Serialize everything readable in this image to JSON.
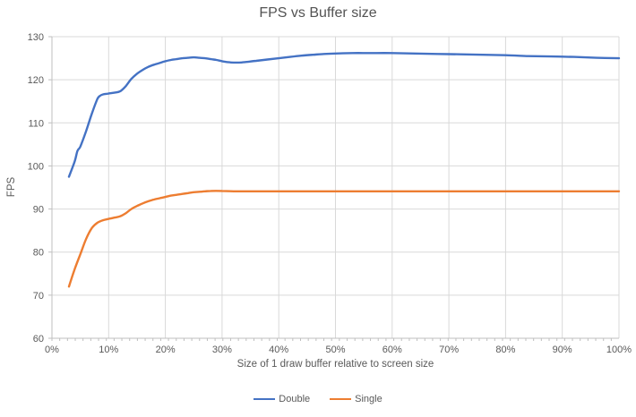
{
  "chart_data": {
    "type": "line",
    "title": "FPS vs Buffer size",
    "xlabel": "Size of 1 draw buffer relative to screen size",
    "ylabel": "FPS",
    "xlim": [
      0,
      100
    ],
    "ylim": [
      60,
      130
    ],
    "x_ticks": [
      0,
      10,
      20,
      30,
      40,
      50,
      60,
      70,
      80,
      90,
      100
    ],
    "x_tick_labels": [
      "0%",
      "10%",
      "20%",
      "30%",
      "40%",
      "50%",
      "60%",
      "70%",
      "80%",
      "90%",
      "100%"
    ],
    "y_ticks": [
      60,
      70,
      80,
      90,
      100,
      110,
      120,
      130
    ],
    "y_tick_labels": [
      "60",
      "70",
      "80",
      "90",
      "100",
      "110",
      "120",
      "130"
    ],
    "x_minor_tick_step": 1.37,
    "grid": true,
    "legend_position": "bottom",
    "colors": {
      "grid": "#d9d9d9",
      "axis": "#bfbfbf",
      "tick_text": "#595959",
      "title_text": "#535353"
    },
    "series": [
      {
        "name": "Double",
        "color": "#4472c4",
        "x": [
          3,
          4,
          4.5,
          5,
          6,
          7,
          8,
          8.5,
          9,
          10,
          11,
          12,
          13,
          14,
          15,
          16,
          17,
          18,
          19,
          20,
          21,
          22,
          23,
          24,
          25,
          26,
          27,
          28,
          29,
          30,
          31,
          32,
          33,
          34,
          36,
          38,
          40,
          42,
          44,
          46,
          48,
          50,
          53,
          56,
          60,
          64,
          68,
          72,
          76,
          80,
          84,
          88,
          92,
          96,
          100
        ],
        "y": [
          97.5,
          101,
          103.5,
          104.5,
          108,
          112,
          115.5,
          116.3,
          116.6,
          116.8,
          117,
          117.3,
          118.5,
          120.2,
          121.4,
          122.3,
          123,
          123.5,
          123.9,
          124.3,
          124.6,
          124.8,
          125,
          125.1,
          125.2,
          125.1,
          125,
          124.8,
          124.6,
          124.3,
          124.1,
          124,
          124,
          124.1,
          124.4,
          124.7,
          125,
          125.3,
          125.6,
          125.8,
          126,
          126.1,
          126.2,
          126.2,
          126.2,
          126.1,
          126,
          125.9,
          125.8,
          125.7,
          125.5,
          125.4,
          125.3,
          125.1,
          125
        ]
      },
      {
        "name": "Single",
        "color": "#ed7d31",
        "x": [
          3,
          4,
          5,
          6,
          7,
          8,
          9,
          10,
          11,
          12,
          13,
          14,
          15,
          16,
          17,
          18,
          19,
          20,
          21,
          22,
          23,
          24,
          25,
          26,
          27,
          28,
          30,
          32,
          35,
          40,
          45,
          50,
          60,
          70,
          80,
          90,
          100
        ],
        "y": [
          72,
          76,
          79.5,
          83,
          85.5,
          86.8,
          87.4,
          87.7,
          88,
          88.3,
          89,
          90,
          90.7,
          91.3,
          91.8,
          92.2,
          92.5,
          92.8,
          93.1,
          93.3,
          93.5,
          93.7,
          93.9,
          94,
          94.1,
          94.2,
          94.2,
          94.1,
          94.1,
          94.1,
          94.1,
          94.1,
          94.1,
          94.1,
          94.1,
          94.1,
          94.1
        ]
      }
    ]
  }
}
